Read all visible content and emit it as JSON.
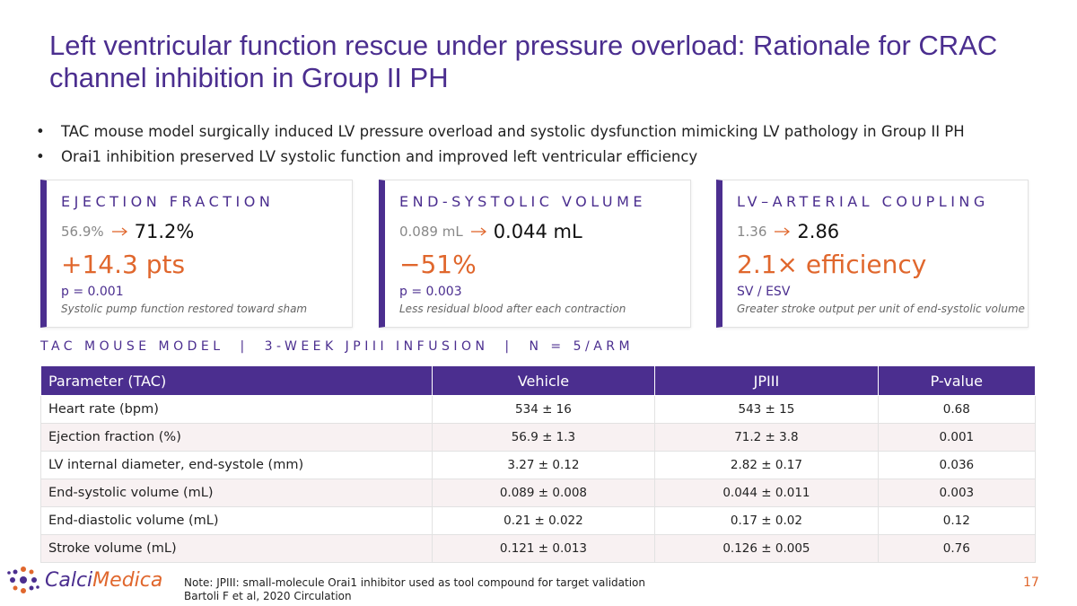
{
  "header": {
    "title": "Left ventricular function rescue under pressure overload: Rationale for CRAC channel inhibition in Group II PH"
  },
  "bullets": [
    "TAC mouse model surgically induced LV pressure overload and systolic dysfunction mimicking LV pathology in Group II PH",
    "Orai1 inhibition preserved LV systolic function and improved left ventricular efficiency"
  ],
  "cards": [
    {
      "label": "EJECTION FRACTION",
      "before": "56.9%",
      "after": "71.2%",
      "change": "+14.3 pts",
      "stat": "p = 0.001",
      "note": "Systolic pump function restored toward sham"
    },
    {
      "label": "END-SYSTOLIC VOLUME",
      "before": "0.089 mL",
      "after": "0.044 mL",
      "change": "−51%",
      "stat": "p = 0.003",
      "note": "Less residual blood after each contraction"
    },
    {
      "label": "LV–ARTERIAL COUPLING",
      "before": "1.36",
      "after": "2.86",
      "change": "2.1× efficiency",
      "stat": "SV / ESV",
      "note": "Greater stroke output per unit of end-systolic volume"
    }
  ],
  "subheader": "TAC MOUSE MODEL  |  3-WEEK JPIII INFUSION  |  N = 5/ARM",
  "table": {
    "columns": [
      "Parameter (TAC)",
      "Vehicle",
      "JPIII",
      "P-value"
    ],
    "rows": [
      [
        "Heart rate (bpm)",
        "534 ± 16",
        "543 ± 15",
        "0.68"
      ],
      [
        "Ejection fraction (%)",
        "56.9 ± 1.3",
        "71.2 ± 3.8",
        "0.001"
      ],
      [
        "LV internal diameter, end-systole (mm)",
        "3.27 ± 0.12",
        "2.82 ± 0.17",
        "0.036"
      ],
      [
        "End-systolic volume (mL)",
        "0.089 ± 0.008",
        "0.044 ± 0.011",
        "0.003"
      ],
      [
        "End-diastolic volume (mL)",
        "0.21 ± 0.022",
        "0.17 ± 0.02",
        "0.12"
      ],
      [
        "Stroke volume (mL)",
        "0.121 ± 0.013",
        "0.126 ± 0.005",
        "0.76"
      ]
    ]
  },
  "footer": {
    "logo": {
      "part1": "Calci",
      "part2": "Medica"
    },
    "notes": [
      "Note: JPIII: small-molecule Orai1 inhibitor used as tool compound for target validation",
      "Bartoli F et al, 2020 Circulation"
    ],
    "page": "17"
  }
}
